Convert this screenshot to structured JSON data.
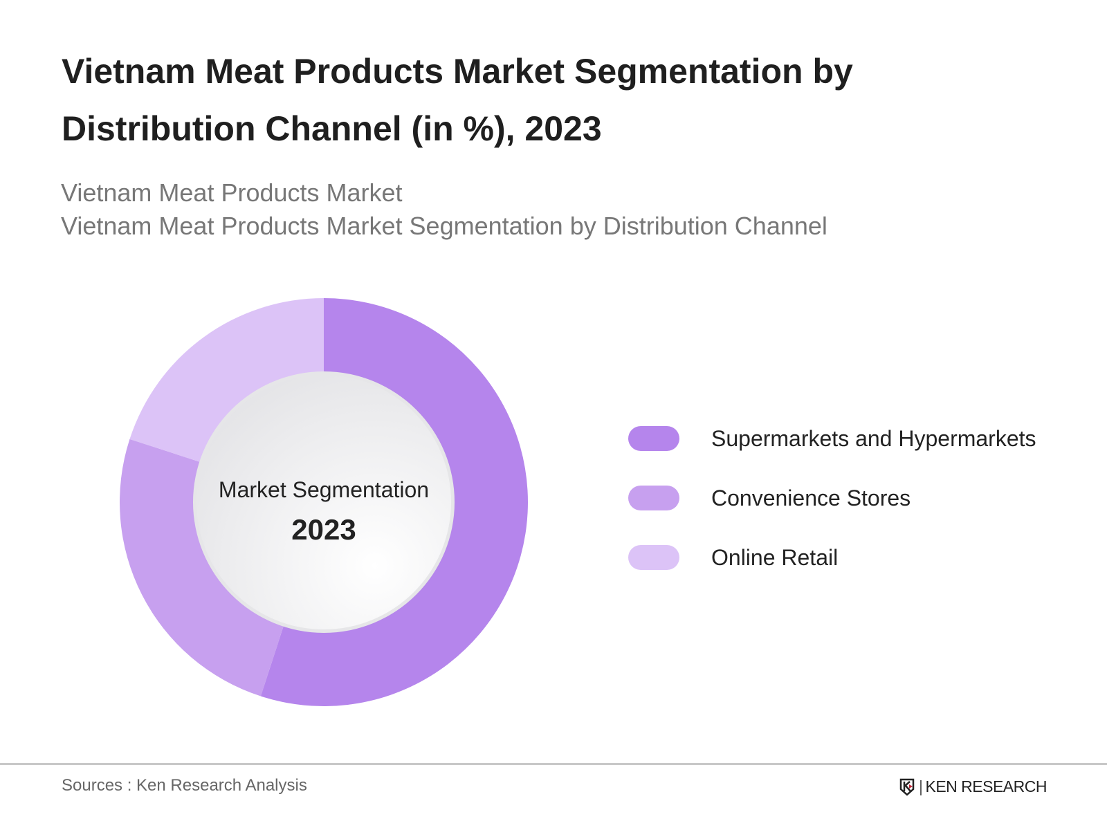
{
  "title": "Vietnam Meat Products Market Segmentation by Distribution Channel (in %), 2023",
  "subtitle_lines": [
    "Vietnam Meat Products Market",
    "Vietnam Meat Products Market Segmentation by Distribution Channel"
  ],
  "chart_data": {
    "type": "pie",
    "donut": true,
    "center_label": "Market Segmentation",
    "center_year": "2023",
    "categories": [
      "Supermarkets and Hypermarkets",
      "Convenience Stores",
      "Online Retail"
    ],
    "values": [
      55,
      25,
      20
    ],
    "colors": [
      "#b585ec",
      "#c7a0ef",
      "#dcc3f7"
    ],
    "legend_position": "right"
  },
  "footer": {
    "source": "Sources : Ken Research Analysis",
    "logo_text": "KEN RESEARCH"
  }
}
